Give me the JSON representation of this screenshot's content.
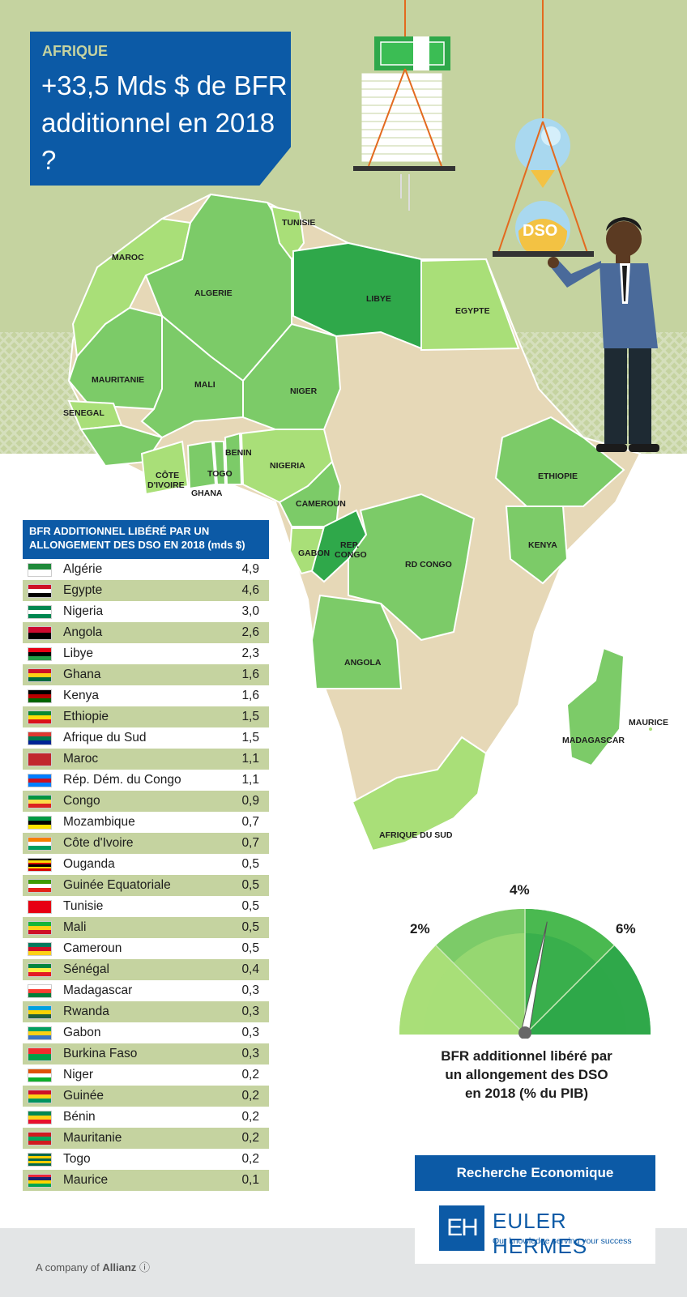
{
  "header": {
    "kicker": "AFRIQUE",
    "title": "+33,5 Mds $ de BFR additionnel en 2018 ?"
  },
  "map_labels": {
    "maroc": "MAROC",
    "tunisie": "TUNISIE",
    "algerie": "ALGERIE",
    "libye": "LIBYE",
    "egypte": "EGYPTE",
    "mauritanie": "MAURITANIE",
    "mali": "MALI",
    "niger": "NIGER",
    "senegal": "SENEGAL",
    "benin": "BENIN",
    "cote1": "CÔTE",
    "cote2": "D'IVOIRE",
    "togo": "TOGO",
    "ghana": "GHANA",
    "nigeria": "NIGERIA",
    "cameroun": "CAMEROUN",
    "ethiopie": "ETHIOPIE",
    "gabon": "GABON",
    "rep1": "REP.",
    "rep2": "CONGO",
    "rdcongo": "RD CONGO",
    "kenya": "KENYA",
    "angola": "ANGOLA",
    "madagascar": "MADAGASCAR",
    "maurice": "MAURICE",
    "afriquedusud": "AFRIQUE DU SUD"
  },
  "illustration": {
    "hourglass_label": "DSO"
  },
  "table": {
    "header_line1": "BFR ADDITIONNEL LIBÉRÉ PAR UN",
    "header_line2": "ALLONGEMENT DES DSO EN 2018 (mds $)",
    "rows": [
      {
        "country": "Algérie",
        "value": "4,9",
        "flag": [
          "#1f8a3a",
          "#ffffff"
        ]
      },
      {
        "country": "Egypte",
        "value": "4,6",
        "flag": [
          "#ce1126",
          "#ffffff",
          "#000000"
        ]
      },
      {
        "country": "Nigeria",
        "value": "3,0",
        "flag": [
          "#008751",
          "#ffffff",
          "#008751"
        ]
      },
      {
        "country": "Angola",
        "value": "2,6",
        "flag": [
          "#cc092f",
          "#000000"
        ]
      },
      {
        "country": "Libye",
        "value": "2,3",
        "flag": [
          "#e70013",
          "#000000",
          "#239e46"
        ]
      },
      {
        "country": "Ghana",
        "value": "1,6",
        "flag": [
          "#ce1126",
          "#fcd116",
          "#006b3f"
        ]
      },
      {
        "country": "Kenya",
        "value": "1,6",
        "flag": [
          "#000000",
          "#bb0000",
          "#006600"
        ]
      },
      {
        "country": "Ethiopie",
        "value": "1,5",
        "flag": [
          "#078930",
          "#fcdd09",
          "#da121a"
        ]
      },
      {
        "country": "Afrique du Sud",
        "value": "1,5",
        "flag": [
          "#de3831",
          "#007a4d",
          "#002395"
        ]
      },
      {
        "country": "Maroc",
        "value": "1,1",
        "flag": [
          "#c1272d"
        ]
      },
      {
        "country": "Rép. Dém. du Congo",
        "value": "1,1",
        "flag": [
          "#007fff",
          "#ce1021",
          "#007fff"
        ]
      },
      {
        "country": "Congo",
        "value": "0,9",
        "flag": [
          "#009543",
          "#fbde4a",
          "#dc241f"
        ]
      },
      {
        "country": "Mozambique",
        "value": "0,7",
        "flag": [
          "#009a44",
          "#000000",
          "#fce100"
        ]
      },
      {
        "country": "Côte d'Ivoire",
        "value": "0,7",
        "flag": [
          "#f77f00",
          "#ffffff",
          "#009e60"
        ]
      },
      {
        "country": "Ouganda",
        "value": "0,5",
        "flag": [
          "#000000",
          "#fcdc04",
          "#d90000",
          "#000000",
          "#fcdc04",
          "#d90000"
        ]
      },
      {
        "country": "Guinée Equatoriale",
        "value": "0,5",
        "flag": [
          "#3e9a00",
          "#ffffff",
          "#e32118"
        ]
      },
      {
        "country": "Tunisie",
        "value": "0,5",
        "flag": [
          "#e70013"
        ]
      },
      {
        "country": "Mali",
        "value": "0,5",
        "flag": [
          "#14b53a",
          "#fcd116",
          "#ce1126"
        ]
      },
      {
        "country": "Cameroun",
        "value": "0,5",
        "flag": [
          "#007a5e",
          "#ce1126",
          "#fcd116"
        ]
      },
      {
        "country": "Sénégal",
        "value": "0,4",
        "flag": [
          "#00853f",
          "#fdef42",
          "#e31b23"
        ]
      },
      {
        "country": "Madagascar",
        "value": "0,3",
        "flag": [
          "#ffffff",
          "#fc3d32",
          "#007e3a"
        ]
      },
      {
        "country": "Rwanda",
        "value": "0,3",
        "flag": [
          "#00a1de",
          "#fad201",
          "#20603d"
        ]
      },
      {
        "country": "Gabon",
        "value": "0,3",
        "flag": [
          "#009e60",
          "#fcd116",
          "#3a75c4"
        ]
      },
      {
        "country": "Burkina Faso",
        "value": "0,3",
        "flag": [
          "#ef2b2d",
          "#009e49"
        ]
      },
      {
        "country": "Niger",
        "value": "0,2",
        "flag": [
          "#e05206",
          "#ffffff",
          "#0db02b"
        ]
      },
      {
        "country": "Guinée",
        "value": "0,2",
        "flag": [
          "#ce1126",
          "#fcd116",
          "#009460"
        ]
      },
      {
        "country": "Bénin",
        "value": "0,2",
        "flag": [
          "#008751",
          "#fcd116",
          "#e8112d"
        ]
      },
      {
        "country": "Mauritanie",
        "value": "0,2",
        "flag": [
          "#d01c1f",
          "#00a95c",
          "#d01c1f"
        ]
      },
      {
        "country": "Togo",
        "value": "0,2",
        "flag": [
          "#006a4e",
          "#ffce00",
          "#006a4e",
          "#ffce00",
          "#006a4e"
        ]
      },
      {
        "country": "Maurice",
        "value": "0,1",
        "flag": [
          "#ea2839",
          "#1a206d",
          "#ffd500",
          "#00a551"
        ]
      }
    ]
  },
  "gauge": {
    "tick_2": "2%",
    "tick_4": "4%",
    "tick_6": "6%",
    "pointer_value_pct": 4.5,
    "caption_line1": "BFR additionnel libéré par",
    "caption_line2": "un allongement des DSO",
    "caption_line3": "en 2018 (% du PIB)"
  },
  "footer": {
    "recherche": "Recherche Economique",
    "brand_mark": "EH",
    "brand_name": "EULER HERMES",
    "tagline": "Our knowledge serving your success",
    "allianz_prefix": "A company of",
    "allianz_name": "Allianz"
  },
  "colors": {
    "blue": "#0c5aa6",
    "olive": "#c5d3a0",
    "green_dark": "#2fa84a",
    "green_mid": "#7ccb68",
    "green_light": "#a9df78",
    "beige": "#e6d8b7"
  }
}
